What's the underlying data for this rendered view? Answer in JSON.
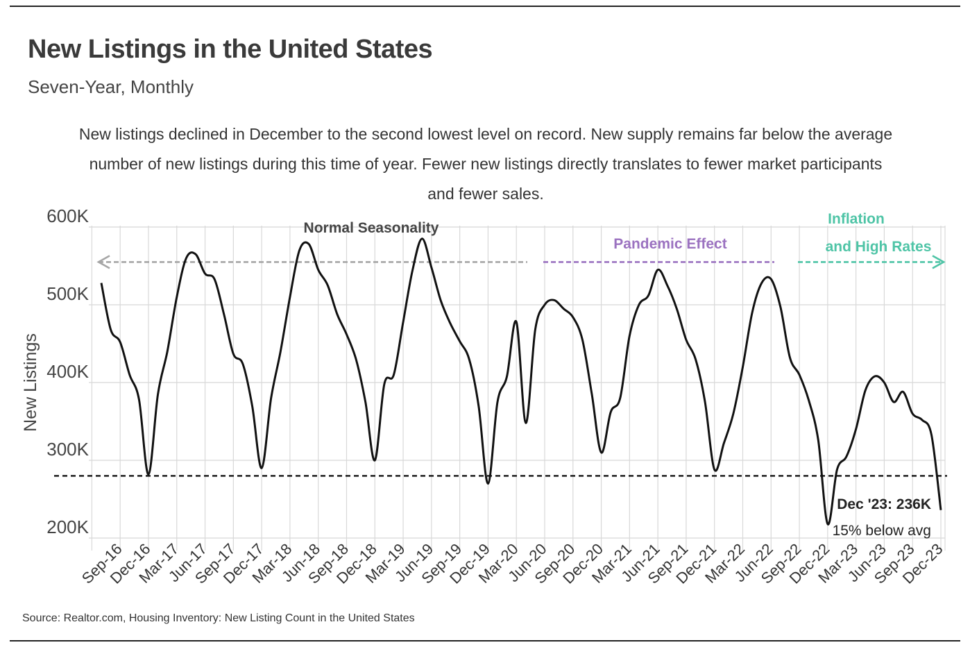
{
  "header": {
    "title": "New Listings in the United States",
    "subtitle": "Seven-Year, Monthly",
    "description": "New listings declined in December to the second lowest level on record. New supply remains far below the average number of new listings during this time of year. Fewer new listings directly translates to fewer market participants and fewer sales."
  },
  "footer": {
    "source": "Source:  Realtor.com, Housing Inventory: New Listing Count in the United States"
  },
  "colors": {
    "line": "#111111",
    "grid": "#d8d8d8",
    "average_line": "#111111",
    "normal_seasonality": "#a6a6a6",
    "pandemic_effect": "#9b72c0",
    "inflation_rates": "#4ec4a6"
  },
  "chart_data": {
    "type": "line",
    "title": "New Listings in the United States",
    "subtitle": "Seven-Year, Monthly",
    "xlabel": "",
    "ylabel": "New Listings",
    "ylim": [
      200000,
      600000
    ],
    "y_ticks": [
      200000,
      300000,
      400000,
      500000,
      600000
    ],
    "y_tick_labels": [
      "200K",
      "300K",
      "400K",
      "500K",
      "600K"
    ],
    "grid": true,
    "x_tick_labels": [
      "Sep-16",
      "Dec-16",
      "Mar-17",
      "Jun-17",
      "Sep-17",
      "Dec-17",
      "Mar-18",
      "Jun-18",
      "Sep-18",
      "Dec-18",
      "Mar-19",
      "Jun-19",
      "Sep-19",
      "Dec-19",
      "Mar-20",
      "Jun-20",
      "Sep-20",
      "Dec-20",
      "Mar-21",
      "Jun-21",
      "Sep-21",
      "Dec-21",
      "Mar-22",
      "Jun-22",
      "Sep-22",
      "Dec-22",
      "Mar-23",
      "Jun-23",
      "Sep-23",
      "Dec-23"
    ],
    "series": [
      {
        "name": "New Listings",
        "start": "Jul-16",
        "end": "Dec-23",
        "values": [
          528000,
          468000,
          452000,
          410000,
          378000,
          282000,
          385000,
          440000,
          510000,
          560000,
          565000,
          540000,
          533000,
          488000,
          437000,
          424000,
          370000,
          290000,
          380000,
          440000,
          510000,
          570000,
          578000,
          545000,
          525000,
          488000,
          462000,
          430000,
          375000,
          300000,
          398000,
          410000,
          478000,
          545000,
          585000,
          548000,
          505000,
          476000,
          453000,
          430000,
          370000,
          270000,
          375000,
          408000,
          478000,
          348000,
          468000,
          500000,
          506000,
          495000,
          484000,
          455000,
          385000,
          310000,
          362000,
          380000,
          460000,
          500000,
          512000,
          545000,
          525000,
          495000,
          455000,
          430000,
          375000,
          288000,
          322000,
          360000,
          420000,
          490000,
          528000,
          533000,
          497000,
          432000,
          410000,
          377000,
          326000,
          218000,
          288000,
          305000,
          340000,
          390000,
          408000,
          400000,
          375000,
          388000,
          360000,
          352000,
          333000,
          236000
        ]
      }
    ],
    "reference_line": {
      "value": 280000,
      "style": "dashed"
    },
    "annotations": [
      {
        "text": "Normal Seasonality",
        "from": "Jul-16",
        "to": "Mar-20",
        "y": 555000,
        "arrow": "left",
        "color": "#a6a6a6"
      },
      {
        "text": "Pandemic Effect",
        "from": "Apr-20",
        "to": "Jun-22",
        "y": 555000,
        "arrow": "none",
        "color": "#9b72c0"
      },
      {
        "text_line1": "Inflation",
        "text_line2": "and High Rates",
        "from": "Jul-22",
        "to": "Dec-23",
        "y": 555000,
        "arrow": "right",
        "color": "#4ec4a6"
      },
      {
        "text": "Dec '23: 236K",
        "detail": "15% below avg",
        "at": "Dec-23"
      }
    ]
  }
}
